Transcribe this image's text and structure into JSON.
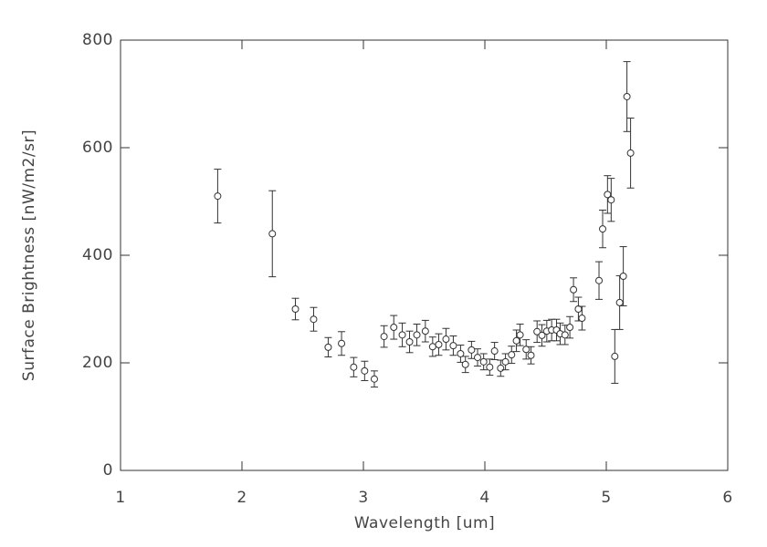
{
  "chart_data": {
    "type": "scatter",
    "x_label": "Wavelength [um]",
    "y_label": "Surface Brightness [nW/m2/sr]",
    "xlim": [
      1,
      6
    ],
    "ylim": [
      0,
      800
    ],
    "xticks": [
      1,
      2,
      3,
      4,
      5,
      6
    ],
    "yticks": [
      0,
      200,
      400,
      600,
      800
    ],
    "color": "#333333",
    "x": [
      1.8,
      2.25,
      2.44,
      2.59,
      2.71,
      2.82,
      2.92,
      3.01,
      3.09,
      3.17,
      3.25,
      3.32,
      3.38,
      3.44,
      3.51,
      3.57,
      3.62,
      3.68,
      3.74,
      3.8,
      3.84,
      3.89,
      3.94,
      3.99,
      4.04,
      4.08,
      4.13,
      4.17,
      4.22,
      4.26,
      4.29,
      4.34,
      4.38,
      4.43,
      4.47,
      4.51,
      4.55,
      4.59,
      4.62,
      4.66,
      4.7,
      4.73,
      4.77,
      4.8,
      4.94,
      4.97,
      5.01,
      5.04,
      5.07,
      5.11,
      5.14,
      5.17,
      5.2
    ],
    "values": [
      510,
      440,
      300,
      281,
      229,
      236,
      192,
      185,
      170,
      249,
      266,
      252,
      239,
      252,
      259,
      230,
      234,
      244,
      232,
      217,
      197,
      224,
      210,
      202,
      192,
      222,
      190,
      202,
      215,
      241,
      252,
      225,
      214,
      258,
      251,
      259,
      261,
      261,
      254,
      252,
      266,
      336,
      300,
      283,
      353,
      449,
      513,
      503,
      212,
      312,
      361,
      695,
      590
    ],
    "errors": [
      50,
      80,
      20,
      22,
      18,
      22,
      18,
      18,
      15,
      20,
      22,
      22,
      20,
      20,
      20,
      18,
      20,
      20,
      18,
      16,
      15,
      16,
      16,
      15,
      15,
      16,
      15,
      15,
      16,
      20,
      20,
      18,
      16,
      20,
      20,
      20,
      20,
      20,
      20,
      18,
      20,
      22,
      22,
      22,
      35,
      35,
      35,
      40,
      50,
      50,
      55,
      65,
      65
    ]
  }
}
